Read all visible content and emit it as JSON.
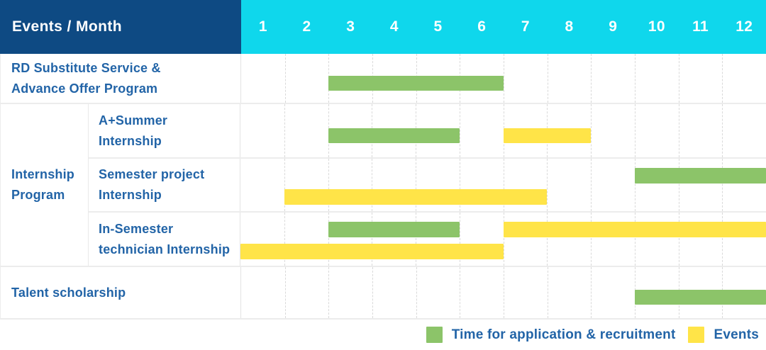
{
  "title_cell": "Events / Month",
  "months": [
    "1",
    "2",
    "3",
    "4",
    "5",
    "6",
    "7",
    "8",
    "9",
    "10",
    "11",
    "12"
  ],
  "colors": {
    "header_navy": "#0e4a83",
    "header_cyan": "#0fd7ec",
    "recruitment_green": "#8cc469",
    "events_yellow": "#ffe448",
    "label_blue": "#2264a7"
  },
  "rows": [
    {
      "kind": "simple",
      "label_lines": [
        "RD Substitute Service &",
        "Advance Offer Program"
      ],
      "bars": [
        {
          "type": "recruitment",
          "start": 3,
          "end": 6,
          "lane": 0
        }
      ]
    },
    {
      "kind": "group",
      "group_label_lines": [
        "Internship",
        "Program"
      ],
      "children": [
        {
          "label_lines": [
            "A+Summer",
            "Internship"
          ],
          "bars": [
            {
              "type": "recruitment",
              "start": 3,
              "end": 5,
              "lane": 0
            },
            {
              "type": "events",
              "start": 7,
              "end": 8,
              "lane": 0
            }
          ]
        },
        {
          "label_lines": [
            "Semester project",
            "Internship"
          ],
          "bars": [
            {
              "type": "recruitment",
              "start": 10,
              "end": 12,
              "lane": 0
            },
            {
              "type": "events",
              "start": 2,
              "end": 7,
              "lane": 1
            }
          ]
        },
        {
          "label_lines": [
            "In-Semester",
            "technician Internship"
          ],
          "bars": [
            {
              "type": "recruitment",
              "start": 3,
              "end": 5,
              "lane": 0
            },
            {
              "type": "events",
              "start": 7,
              "end": 12,
              "lane": 0
            },
            {
              "type": "events",
              "start": 1,
              "end": 6,
              "lane": 1
            }
          ]
        }
      ]
    },
    {
      "kind": "simple",
      "label_lines": [
        "Talent scholarship"
      ],
      "bars": [
        {
          "type": "recruitment",
          "start": 10,
          "end": 12,
          "lane": 0
        }
      ]
    }
  ],
  "legend": [
    {
      "type": "recruitment",
      "label": "Time for application & recruitment"
    },
    {
      "type": "events",
      "label": "Events"
    }
  ],
  "chart_data": {
    "type": "gantt",
    "title": "Events / Month",
    "x_axis": {
      "label": "Month",
      "ticks": [
        1,
        2,
        3,
        4,
        5,
        6,
        7,
        8,
        9,
        10,
        11,
        12
      ],
      "range": [
        1,
        12
      ]
    },
    "legend_position": "bottom-right",
    "series_legend": [
      "Time for application & recruitment",
      "Events"
    ],
    "tasks": [
      {
        "row": "RD Substitute Service & Advance Offer Program",
        "group": null,
        "series": "Time for application & recruitment",
        "start_month": 3,
        "end_month": 6
      },
      {
        "row": "A+Summer Internship",
        "group": "Internship Program",
        "series": "Time for application & recruitment",
        "start_month": 3,
        "end_month": 5
      },
      {
        "row": "A+Summer Internship",
        "group": "Internship Program",
        "series": "Events",
        "start_month": 7,
        "end_month": 8
      },
      {
        "row": "Semester project Internship",
        "group": "Internship Program",
        "series": "Time for application & recruitment",
        "start_month": 10,
        "end_month": 12
      },
      {
        "row": "Semester project Internship",
        "group": "Internship Program",
        "series": "Events",
        "start_month": 2,
        "end_month": 7
      },
      {
        "row": "In-Semester technician Internship",
        "group": "Internship Program",
        "series": "Time for application & recruitment",
        "start_month": 3,
        "end_month": 5
      },
      {
        "row": "In-Semester technician Internship",
        "group": "Internship Program",
        "series": "Events",
        "start_month": 7,
        "end_month": 12
      },
      {
        "row": "In-Semester technician Internship",
        "group": "Internship Program",
        "series": "Events",
        "start_month": 1,
        "end_month": 6
      },
      {
        "row": "Talent scholarship",
        "group": null,
        "series": "Time for application & recruitment",
        "start_month": 10,
        "end_month": 12
      }
    ]
  }
}
